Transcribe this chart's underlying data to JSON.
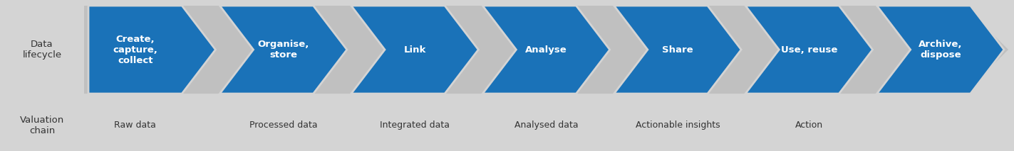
{
  "background_color": "#d4d4d4",
  "outer_arrow_color": "#c0c0c0",
  "arrow_color": "#1a72b8",
  "text_color_white": "#ffffff",
  "text_color_dark": "#333333",
  "lifecycle_labels": [
    "Create,\ncapture,\ncollect",
    "Organise,\nstore",
    "Link",
    "Analyse",
    "Share",
    "Use, reuse",
    "Archive,\ndispose"
  ],
  "valuation_labels": [
    "Raw data",
    "Processed data",
    "Integrated data",
    "Analysed data",
    "Actionable insights",
    "Action"
  ],
  "left_label_lifecycle": "Data\nlifecycle",
  "left_label_valuation": "Valuation\nchain",
  "fig_width": 14.23,
  "fig_height": 2.13,
  "dpi": 100
}
